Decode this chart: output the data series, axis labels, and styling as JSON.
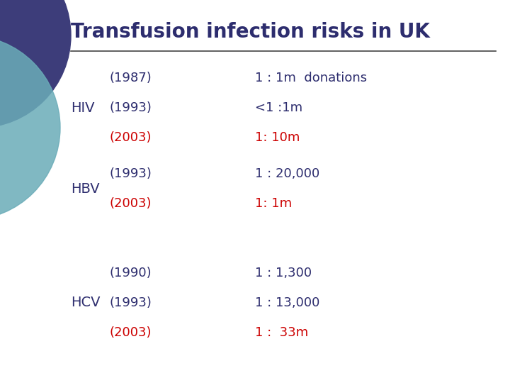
{
  "title": "Transfusion infection risks in UK",
  "title_color": "#2d2d6e",
  "background_color": "#ffffff",
  "rows": [
    {
      "label": "HIV",
      "label_color": "#2d2d6e",
      "entries": [
        {
          "year": "(1987)",
          "year_color": "#2d2d6e",
          "value": "1 : 1m  donations",
          "value_color": "#2d2d6e"
        },
        {
          "year": "(1993)",
          "year_color": "#2d2d6e",
          "value": "<1 :1m",
          "value_color": "#2d2d6e"
        },
        {
          "year": "(2003)",
          "year_color": "#cc0000",
          "value": "1: 10m",
          "value_color": "#cc0000"
        }
      ]
    },
    {
      "label": "HBV",
      "label_color": "#2d2d6e",
      "entries": [
        {
          "year": "(1993)",
          "year_color": "#2d2d6e",
          "value": "1 : 20,000",
          "value_color": "#2d2d6e"
        },
        {
          "year": "(2003)",
          "year_color": "#cc0000",
          "value": "1: 1m",
          "value_color": "#cc0000"
        }
      ]
    },
    {
      "label": "HCV",
      "label_color": "#2d2d6e",
      "entries": [
        {
          "year": "(1990)",
          "year_color": "#2d2d6e",
          "value": "1 : 1,300",
          "value_color": "#2d2d6e"
        },
        {
          "year": "(1993)",
          "year_color": "#2d2d6e",
          "value": "1 : 13,000",
          "value_color": "#2d2d6e"
        },
        {
          "year": "(2003)",
          "year_color": "#cc0000",
          "value": "1 :  33m",
          "value_color": "#cc0000"
        }
      ]
    }
  ],
  "line_color": "#444444",
  "font_size_title": 20,
  "font_size_body": 13,
  "circle1_color": "#3d3d7a",
  "circle2_color": "#6aacb8",
  "circle1_alpha": 1.0,
  "circle2_alpha": 0.85
}
